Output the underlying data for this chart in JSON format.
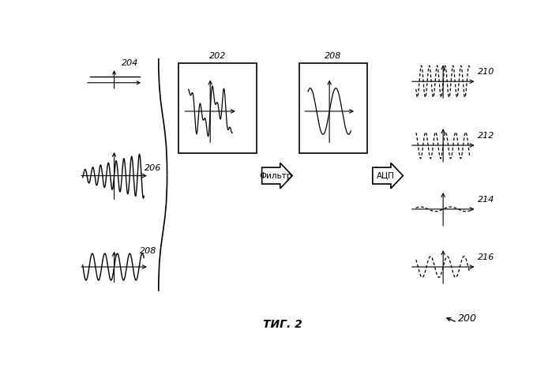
{
  "title": "ΤИГ. 2",
  "bg_color": "#ffffff",
  "label_204": "204",
  "label_206": "206",
  "label_208_left": "208",
  "label_202": "202",
  "label_208_box": "208",
  "label_210": "210",
  "label_212": "212",
  "label_214": "214",
  "label_216": "216",
  "label_200": "200",
  "filter_text": "Фильтр",
  "adc_text": "АЦП",
  "figsize": [
    6.99,
    4.75
  ],
  "dpi": 100
}
